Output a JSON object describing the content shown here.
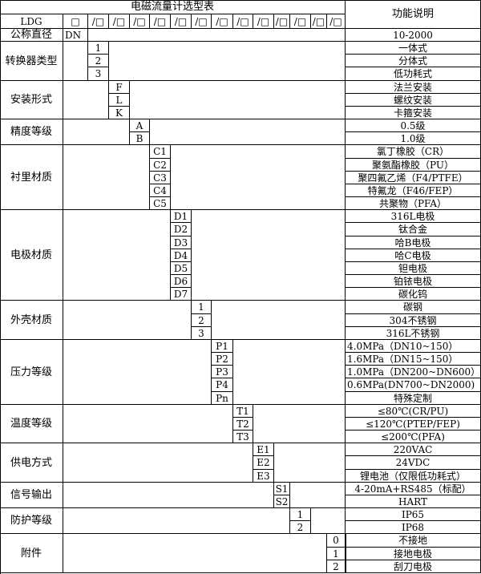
{
  "title": "电磁流量计选型表",
  "function_header": "功能说明",
  "model_row": {
    "prefix": "LDG",
    "first_slot": "□",
    "slot": "/□",
    "slot_count": 13
  },
  "nominal": {
    "label": "公称直径",
    "code": "DN",
    "desc": "10-2000"
  },
  "groups": [
    {
      "label": "转换器类型",
      "slot": 1,
      "rows": [
        {
          "code": "1",
          "desc": "一体式"
        },
        {
          "code": "2",
          "desc": "分体式"
        },
        {
          "code": "3",
          "desc": "低功耗式"
        }
      ]
    },
    {
      "label": "安装形式",
      "slot": 2,
      "rows": [
        {
          "code": "F",
          "desc": "法兰安装"
        },
        {
          "code": "L",
          "desc": "螺纹安装"
        },
        {
          "code": "K",
          "desc": "卡箍安装"
        }
      ]
    },
    {
      "label": "精度等级",
      "slot": 3,
      "rows": [
        {
          "code": "A",
          "desc": "0.5级"
        },
        {
          "code": "B",
          "desc": "1.0级"
        }
      ]
    },
    {
      "label": "衬里材质",
      "slot": 4,
      "rows": [
        {
          "code": "C1",
          "desc": "氯丁橡胶（CR）"
        },
        {
          "code": "C2",
          "desc": "聚氨酯橡胶（PU）"
        },
        {
          "code": "C3",
          "desc": "聚四氟乙烯（F4/PTFE）"
        },
        {
          "code": "C4",
          "desc": "特氟龙（F46/FEP）"
        },
        {
          "code": "C5",
          "desc": "共聚物（PFA）"
        }
      ]
    },
    {
      "label": "电极材质",
      "slot": 5,
      "rows": [
        {
          "code": "D1",
          "desc": "316L电极"
        },
        {
          "code": "D2",
          "desc": "钛合金"
        },
        {
          "code": "D3",
          "desc": "哈B电极"
        },
        {
          "code": "D4",
          "desc": "哈C电极"
        },
        {
          "code": "D5",
          "desc": "钽电极"
        },
        {
          "code": "D6",
          "desc": "铂铱电极"
        },
        {
          "code": "D7",
          "desc": "碳化钨"
        }
      ]
    },
    {
      "label": "外壳材质",
      "slot": 6,
      "rows": [
        {
          "code": "1",
          "desc": "碳钢"
        },
        {
          "code": "2",
          "desc": "304不锈钢"
        },
        {
          "code": "3",
          "desc": "316L不锈钢"
        }
      ]
    },
    {
      "label": "压力等级",
      "slot": 7,
      "rows": [
        {
          "code": "P1",
          "desc": "4.0MPa（DN10~150）",
          "align": "left"
        },
        {
          "code": "P2",
          "desc": "1.6MPa（DN15~150）",
          "align": "left"
        },
        {
          "code": "P3",
          "desc": "1.0MPa（DN200~DN600）",
          "align": "left"
        },
        {
          "code": "P4",
          "desc": "0.6MPa(DN700~DN2000)",
          "align": "left"
        },
        {
          "code": "Pn",
          "desc": "特殊定制"
        }
      ]
    },
    {
      "label": "温度等级",
      "slot": 8,
      "rows": [
        {
          "code": "T1",
          "desc": "≤80℃(CR/PU)"
        },
        {
          "code": "T2",
          "desc": "≤120℃(PTEP/FEP)"
        },
        {
          "code": "T3",
          "desc": "≤200℃(PFA)"
        }
      ]
    },
    {
      "label": "供电方式",
      "slot": 9,
      "rows": [
        {
          "code": "E1",
          "desc": "220VAC"
        },
        {
          "code": "E2",
          "desc": "24VDC"
        },
        {
          "code": "E3",
          "desc": "锂电池（仅限低功耗式）"
        }
      ]
    },
    {
      "label": "信号输出",
      "slot": 10,
      "rows": [
        {
          "code": "S1",
          "desc": "4-20mA+RS485（标配）"
        },
        {
          "code": "S2",
          "desc": "HART"
        }
      ]
    },
    {
      "label": "防护等级",
      "slot": 11,
      "rows": [
        {
          "code": "1",
          "desc": "IP65"
        },
        {
          "code": "2",
          "desc": "IP68"
        }
      ]
    },
    {
      "label": "附件",
      "slot": 13,
      "rows": [
        {
          "code": "0",
          "desc": "不接地"
        },
        {
          "code": "1",
          "desc": "接地电极"
        },
        {
          "code": "2",
          "desc": "刮刀电极"
        }
      ]
    }
  ]
}
